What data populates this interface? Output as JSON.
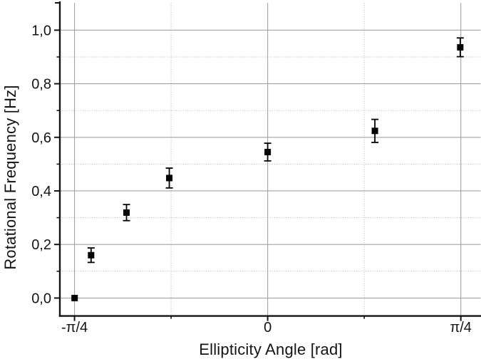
{
  "chart_data": {
    "type": "scatter",
    "title": "",
    "xlabel": "Ellipticity Angle [rad]",
    "ylabel": "Rotational Frequency [Hz]",
    "legend": "none",
    "xlim": [
      -0.845,
      0.866
    ],
    "ylim": [
      -0.067,
      1.102
    ],
    "x_major_ticks": [
      {
        "value": -0.7854,
        "label": "-π/4"
      },
      {
        "value": 0,
        "label": "0"
      },
      {
        "value": 0.7854,
        "label": "π/4"
      }
    ],
    "x_minor_ticks": [
      -0.3927,
      0.3927
    ],
    "y_major_ticks": [
      {
        "value": 0.0,
        "label": "0,0"
      },
      {
        "value": 0.2,
        "label": "0,2"
      },
      {
        "value": 0.4,
        "label": "0,4"
      },
      {
        "value": 0.6,
        "label": "0,6"
      },
      {
        "value": 0.8,
        "label": "0,8"
      },
      {
        "value": 1.0,
        "label": "1,0"
      }
    ],
    "y_minor_ticks": [
      0.1,
      0.3,
      0.5,
      0.7,
      0.9
    ],
    "grid": {
      "major_style": "solid",
      "minor_style": "dotted",
      "major_color": "#a2a2a2",
      "minor_color": "#b4b4b4"
    },
    "series": [
      {
        "name": "rotational-frequency-vs-ellipticity",
        "marker": "filled-square",
        "color": "#000000",
        "points": [
          {
            "x": -0.785,
            "y": 0.0,
            "yerr": 0
          },
          {
            "x": -0.718,
            "y": 0.16,
            "yerr": 0.027
          },
          {
            "x": -0.574,
            "y": 0.319,
            "yerr": 0.03
          },
          {
            "x": -0.4,
            "y": 0.448,
            "yerr": 0.037
          },
          {
            "x": 0.0,
            "y": 0.545,
            "yerr": 0.033
          },
          {
            "x": 0.436,
            "y": 0.624,
            "yerr": 0.043
          },
          {
            "x": 0.783,
            "y": 0.936,
            "yerr": 0.035
          }
        ]
      }
    ]
  },
  "style": {
    "axis_color": "#141414",
    "text_color": "#141414",
    "marker_color": "#000000",
    "background": "#ffffff"
  }
}
